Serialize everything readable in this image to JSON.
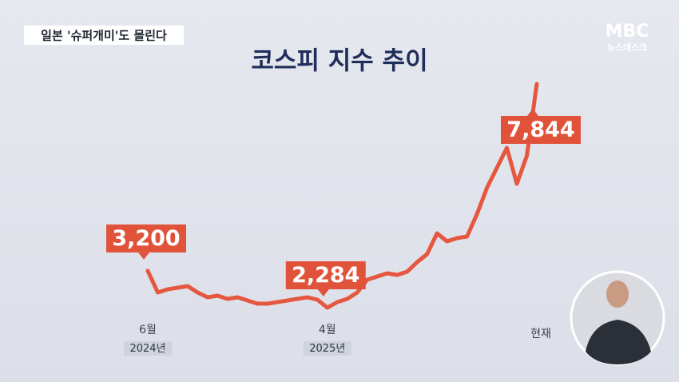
{
  "header": {
    "tag": "일본 '슈퍼개미'도 몰린다",
    "logo": "MBC",
    "logo_sub": "뉴스데스크"
  },
  "chart_data": {
    "type": "line",
    "title": "코스피 지수 추이",
    "color": "#e5573f",
    "categories": [
      "6월",
      null,
      null,
      null,
      null,
      null,
      null,
      null,
      null,
      null,
      null,
      null,
      null,
      null,
      null,
      null,
      null,
      null,
      "4월",
      null,
      null,
      null,
      null,
      null,
      null,
      null,
      null,
      null,
      null,
      null,
      null,
      null,
      null,
      null,
      null,
      null,
      null,
      null,
      null,
      "현재"
    ],
    "category_sublabels": [
      "2024년",
      null,
      null,
      null,
      null,
      null,
      null,
      null,
      null,
      null,
      null,
      null,
      null,
      null,
      null,
      null,
      null,
      null,
      "2025년",
      null,
      null,
      null,
      null,
      null,
      null,
      null,
      null,
      null,
      null,
      null,
      null,
      null,
      null,
      null,
      null,
      null,
      null,
      null,
      null,
      null
    ],
    "values": [
      3200,
      2661,
      2741,
      2781,
      2820,
      2661,
      2542,
      2582,
      2502,
      2542,
      2463,
      2383,
      2383,
      2423,
      2463,
      2502,
      2542,
      2483,
      2284,
      2423,
      2502,
      2661,
      2979,
      3059,
      3138,
      3098,
      3178,
      3416,
      3615,
      4131,
      3932,
      4012,
      4052,
      4608,
      5263,
      5760,
      6256,
      5362,
      6057,
      7844
    ],
    "value_labels": [
      "3,200",
      null,
      null,
      null,
      null,
      null,
      null,
      null,
      null,
      null,
      null,
      null,
      null,
      null,
      null,
      null,
      null,
      null,
      "2,284",
      null,
      null,
      null,
      null,
      null,
      null,
      null,
      null,
      null,
      null,
      null,
      null,
      null,
      null,
      null,
      null,
      null,
      null,
      null,
      null,
      "7,844"
    ]
  }
}
